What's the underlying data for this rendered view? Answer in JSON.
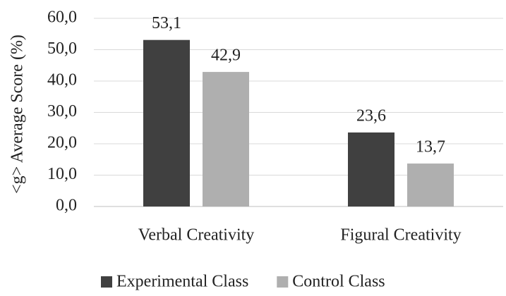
{
  "chart_data": {
    "type": "bar",
    "ylabel": "<g> Average Score (%)",
    "categories": [
      "Verbal Creativity",
      "Figural Creativity"
    ],
    "series": [
      {
        "name": "Experimental Class",
        "color": "#404040",
        "values": [
          53.1,
          23.6
        ],
        "value_labels": [
          "53,1",
          "23,6"
        ]
      },
      {
        "name": "Control Class",
        "color": "#afafaf",
        "values": [
          42.9,
          13.7
        ],
        "value_labels": [
          "42,9",
          "13,7"
        ]
      }
    ],
    "ylim": [
      0,
      60
    ],
    "yticks": [
      {
        "value": 0,
        "label": "0,0"
      },
      {
        "value": 10,
        "label": "10,0"
      },
      {
        "value": 20,
        "label": "20,0"
      },
      {
        "value": 30,
        "label": "30,0"
      },
      {
        "value": 40,
        "label": "40,0"
      },
      {
        "value": 50,
        "label": "50,0"
      },
      {
        "value": 60,
        "label": "60,0"
      }
    ],
    "grid": true,
    "legend": "bottom"
  }
}
